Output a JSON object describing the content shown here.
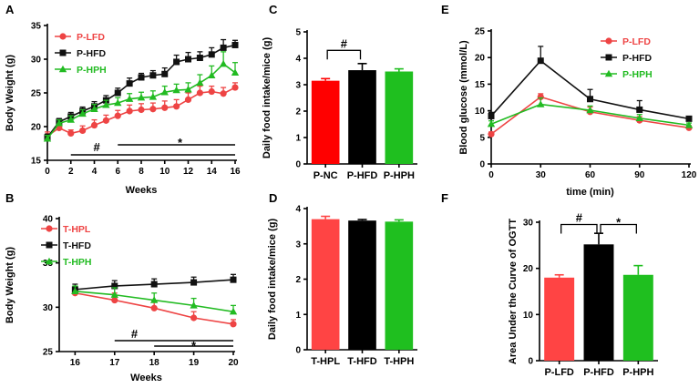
{
  "colors": {
    "red": "#ee4444",
    "black": "#111111",
    "green": "#22bb22"
  },
  "chart_data": [
    {
      "id": "A",
      "type": "line",
      "panel_label": "A",
      "xlabel": "Weeks",
      "ylabel": "Body Weight (g)",
      "xlim": [
        0,
        16
      ],
      "ylim": [
        15,
        35
      ],
      "xticks": [
        "0",
        "2",
        "4",
        "6",
        "8",
        "10",
        "12",
        "14",
        "16"
      ],
      "yticks": [
        "15",
        "20",
        "25",
        "30",
        "35"
      ],
      "x": [
        0,
        1,
        2,
        3,
        4,
        5,
        6,
        7,
        8,
        9,
        10,
        11,
        12,
        13,
        14,
        15,
        16
      ],
      "series": [
        {
          "name": "P-LFD",
          "marker": "circle",
          "color": "#ee4444",
          "values": [
            18.6,
            19.8,
            19.0,
            19.4,
            20.2,
            20.9,
            21.6,
            22.3,
            22.5,
            22.6,
            22.8,
            23.0,
            24.0,
            25.0,
            25.2,
            24.9,
            25.8
          ],
          "errors": [
            0.6,
            0.6,
            0.5,
            0.7,
            0.8,
            0.8,
            0.8,
            0.9,
            0.9,
            0.9,
            1.0,
            1.0,
            1.0,
            1.0,
            0.8,
            0.9,
            0.7
          ]
        },
        {
          "name": "P-HFD",
          "marker": "square",
          "color": "#111111",
          "values": [
            18.4,
            20.7,
            21.5,
            22.3,
            23.0,
            23.9,
            25.0,
            26.4,
            27.3,
            27.6,
            27.8,
            29.6,
            30.0,
            30.2,
            30.7,
            31.7,
            32.1
          ],
          "errors": [
            0.5,
            0.5,
            0.6,
            0.6,
            0.7,
            0.7,
            0.7,
            0.8,
            0.6,
            0.7,
            0.9,
            1.0,
            1.0,
            0.9,
            1.0,
            1.2,
            0.7
          ]
        },
        {
          "name": "P-HPH",
          "marker": "triangle",
          "color": "#22bb22",
          "values": [
            18.2,
            20.5,
            21.0,
            21.9,
            22.6,
            23.2,
            23.5,
            24.1,
            24.3,
            24.4,
            25.1,
            25.4,
            25.5,
            26.5,
            27.6,
            29.3,
            28.0
          ],
          "errors": [
            0.5,
            0.5,
            0.6,
            0.6,
            0.7,
            0.7,
            0.8,
            0.8,
            0.8,
            0.9,
            0.9,
            0.9,
            1.0,
            1.2,
            1.4,
            1.8,
            1.5
          ]
        }
      ],
      "annotations": [
        {
          "text": "#",
          "x_from": 2,
          "x_to": 16,
          "level": 0
        },
        {
          "text": "*",
          "x_from": 6,
          "x_to": 16,
          "level": 1
        }
      ]
    },
    {
      "id": "B",
      "type": "line",
      "panel_label": "B",
      "xlabel": "Weeks",
      "ylabel": "Body Weight (g)",
      "xlim": [
        15.6,
        20
      ],
      "ylim": [
        25,
        40
      ],
      "xticks": [
        "16",
        "17",
        "18",
        "19",
        "20"
      ],
      "yticks": [
        "25",
        "30",
        "35",
        "40"
      ],
      "x": [
        16,
        17,
        18,
        19,
        20
      ],
      "series": [
        {
          "name": "T-HPL",
          "marker": "circle",
          "color": "#ee4444",
          "values": [
            31.6,
            30.8,
            29.9,
            28.8,
            28.1
          ],
          "errors": [
            0.6,
            0.8,
            0.8,
            0.7,
            0.5
          ]
        },
        {
          "name": "T-HFD",
          "marker": "square",
          "color": "#111111",
          "values": [
            32.0,
            32.4,
            32.6,
            32.8,
            33.1
          ],
          "errors": [
            0.6,
            0.6,
            0.6,
            0.6,
            0.6
          ]
        },
        {
          "name": "T-HPH",
          "marker": "triangle",
          "color": "#22bb22",
          "values": [
            31.8,
            31.4,
            30.8,
            30.2,
            29.5
          ],
          "errors": [
            0.6,
            0.8,
            0.8,
            0.8,
            0.7
          ]
        }
      ],
      "annotations": [
        {
          "text": "#",
          "x_from": 17,
          "x_to": 20,
          "level": 1
        },
        {
          "text": "*",
          "x_from": 18,
          "x_to": 20,
          "level": 0
        }
      ]
    },
    {
      "id": "C",
      "type": "bar",
      "panel_label": "C",
      "ylabel": "Daily food intake/mice (g)",
      "ylim": [
        0,
        5
      ],
      "yticks": [
        "0",
        "1",
        "2",
        "3",
        "4",
        "5"
      ],
      "categories": [
        "P-NC",
        "P-HFD",
        "P-HPH"
      ],
      "values": [
        3.15,
        3.55,
        3.5
      ],
      "errors": [
        0.08,
        0.25,
        0.1
      ],
      "bar_colors": [
        "#ff0000",
        "#000000",
        "#1fbf1f"
      ],
      "annotations": [
        {
          "text": "#",
          "from": 0,
          "to": 1
        }
      ]
    },
    {
      "id": "D",
      "type": "bar",
      "panel_label": "D",
      "ylabel": "Daily food intake/mice (g)",
      "ylim": [
        0,
        4
      ],
      "yticks": [
        "0",
        "1",
        "2",
        "3",
        "4"
      ],
      "categories": [
        "T-HPL",
        "T-HFD",
        "T-HPH"
      ],
      "values": [
        3.7,
        3.66,
        3.63
      ],
      "errors": [
        0.08,
        0.03,
        0.05
      ],
      "bar_colors": [
        "#ff4444",
        "#000000",
        "#1fbf1f"
      ],
      "annotations": []
    },
    {
      "id": "E",
      "type": "line",
      "panel_label": "E",
      "xlabel": "time (min)",
      "ylabel": "Blood glucose (mmol/L)",
      "xlim": [
        0,
        120
      ],
      "ylim": [
        0,
        25
      ],
      "xticks": [
        "0",
        "30",
        "60",
        "90",
        "120"
      ],
      "yticks": [
        "0",
        "5",
        "10",
        "15",
        "20",
        "25"
      ],
      "x": [
        0,
        30,
        60,
        90,
        120
      ],
      "series": [
        {
          "name": "P-LFD",
          "marker": "circle",
          "color": "#ee4444",
          "values": [
            5.6,
            12.6,
            9.8,
            8.2,
            6.8
          ],
          "errors": [
            0.4,
            0.6,
            0.9,
            0.7,
            0.4
          ]
        },
        {
          "name": "P-HFD",
          "marker": "square",
          "color": "#111111",
          "values": [
            9.0,
            19.4,
            12.2,
            10.2,
            8.5
          ],
          "errors": [
            0.7,
            2.7,
            1.8,
            1.7,
            0.4
          ]
        },
        {
          "name": "P-HPH",
          "marker": "triangle",
          "color": "#22bb22",
          "values": [
            7.5,
            11.2,
            10.1,
            8.6,
            7.3
          ],
          "errors": [
            0.6,
            1.2,
            0.8,
            0.7,
            0.4
          ]
        }
      ]
    },
    {
      "id": "F",
      "type": "bar",
      "panel_label": "F",
      "ylabel": "Area Under the Curve of OGTT",
      "ylim": [
        0,
        30
      ],
      "yticks": [
        "0",
        "10",
        "20",
        "30"
      ],
      "categories": [
        "P-LFD",
        "P-HFD",
        "P-HPH"
      ],
      "values": [
        18.0,
        25.2,
        18.6
      ],
      "errors": [
        0.6,
        2.4,
        2.0
      ],
      "bar_colors": [
        "#ff4444",
        "#000000",
        "#1fbf1f"
      ],
      "annotations": [
        {
          "text": "#",
          "from": 0,
          "to": 1
        },
        {
          "text": "*",
          "from": 1,
          "to": 2
        }
      ]
    }
  ]
}
